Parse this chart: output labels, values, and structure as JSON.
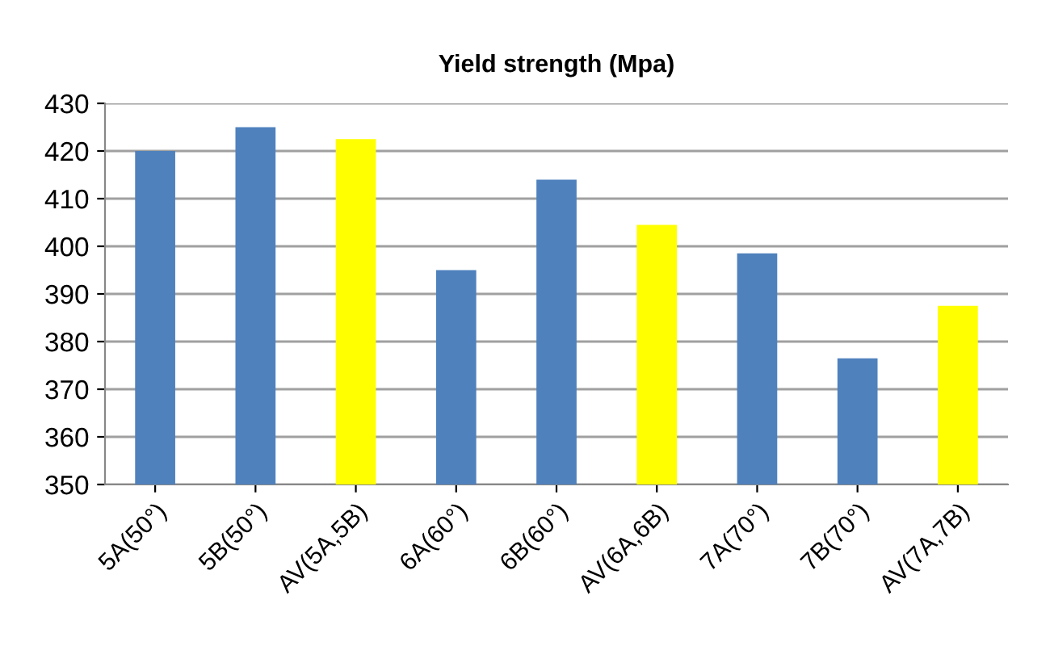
{
  "chart_data": {
    "type": "bar",
    "title": "Yield strength (Mpa)",
    "categories": [
      "5A(50°)",
      "5B(50°)",
      "AV(5A,5B)",
      "6A(60°)",
      "6B(60°)",
      "AV(6A,6B)",
      "7A(70°)",
      "7B(70°)",
      "AV(7A,7B)"
    ],
    "values": [
      420,
      425,
      422.5,
      395,
      414,
      404.5,
      398.5,
      376.5,
      387.5
    ],
    "colors": [
      "#4f81bd",
      "#4f81bd",
      "#ffff00",
      "#4f81bd",
      "#4f81bd",
      "#ffff00",
      "#4f81bd",
      "#4f81bd",
      "#ffff00"
    ],
    "ylim": [
      350,
      430
    ],
    "yticks": [
      350,
      360,
      370,
      380,
      390,
      400,
      410,
      420,
      430
    ],
    "grid": "y",
    "legend": false
  }
}
